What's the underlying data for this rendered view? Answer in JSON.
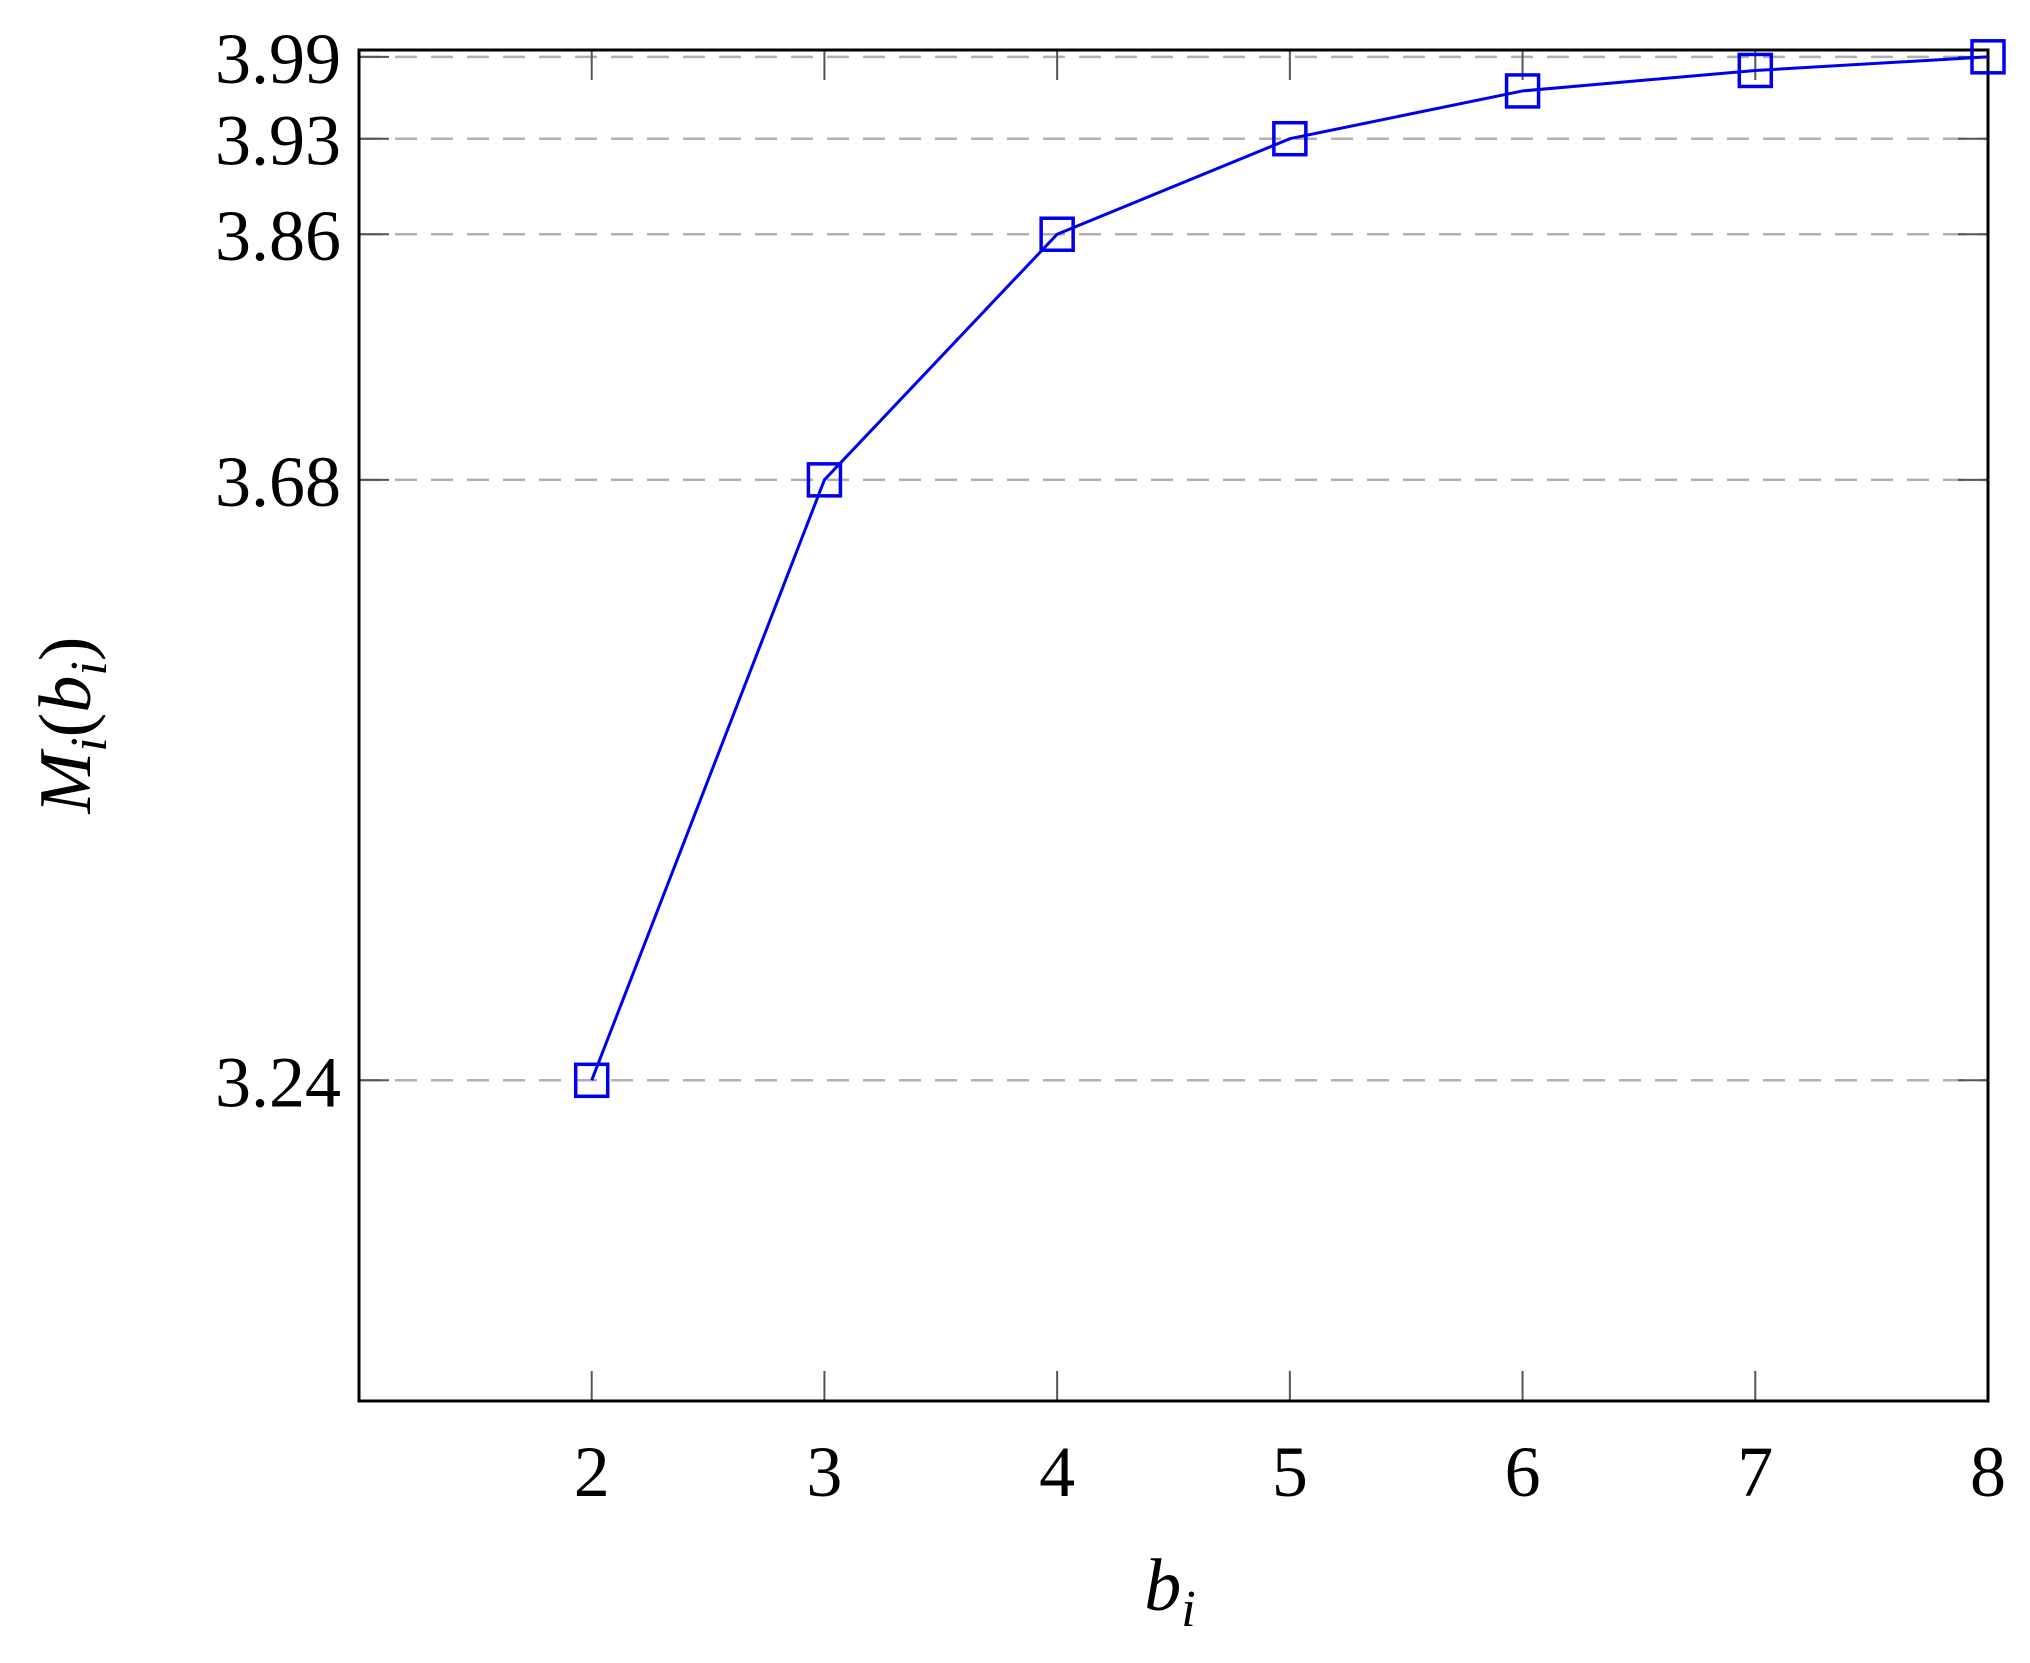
{
  "chart_data": {
    "type": "line",
    "title": "",
    "xlabel": "b",
    "xlabel_sub": "i",
    "ylabel": "M",
    "ylabel_sub": "i",
    "ylabel_arg": "b",
    "ylabel_arg_sub": "i",
    "x": [
      2,
      3,
      4,
      5,
      6,
      7,
      8
    ],
    "series": [
      {
        "values": [
          3.24,
          3.68,
          3.86,
          3.93,
          3.965,
          3.98,
          3.99
        ],
        "color": "#0000ee",
        "marker": "square"
      }
    ],
    "x_ticks": [
      "2",
      "3",
      "4",
      "5",
      "6",
      "7",
      "8"
    ],
    "y_ticks": [
      "3.24",
      "3.68",
      "3.86",
      "3.93",
      "3.99"
    ],
    "y_tick_values": [
      3.24,
      3.68,
      3.86,
      3.93,
      3.99
    ],
    "xlim": [
      1,
      8
    ],
    "ylim": [
      3.005,
      3.995
    ],
    "y_scale": "linear",
    "grid": "horizontal dashed at y ticks",
    "legend": "none",
    "colors": {
      "series": "#0000ee",
      "grid": "#b0b0b0",
      "axis": "#000000"
    }
  }
}
